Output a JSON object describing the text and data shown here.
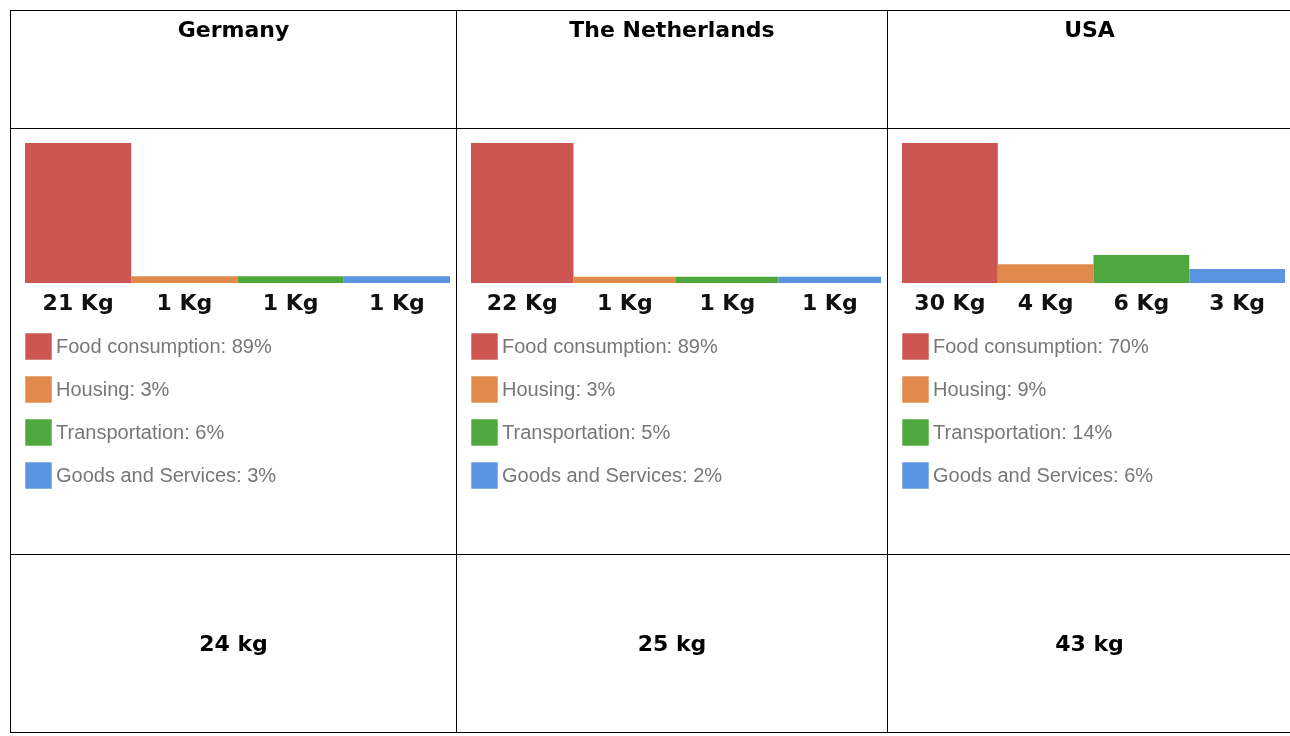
{
  "chart_data": [
    {
      "type": "bar",
      "title": "Germany",
      "categories": [
        null,
        null,
        null,
        null
      ],
      "legend": "bottom",
      "stacked": true,
      "annotations": [
        "24 kg"
      ],
      "series": [
        {
          "name": "Food consumption: 89%",
          "color": "#cd5652",
          "values": [
            21,
            null,
            null,
            null
          ],
          "value_labels": [
            "21 Kg",
            null,
            null,
            null
          ]
        },
        {
          "name": "Housing: 3%",
          "color": "#e0894a",
          "values": [
            null,
            1,
            null,
            null
          ],
          "value_labels": [
            null,
            "1 Kg",
            null,
            null
          ]
        },
        {
          "name": "Transportation: 6%",
          "color": "#4fa83e",
          "values": [
            null,
            null,
            1,
            null
          ],
          "value_labels": [
            null,
            null,
            "1 Kg",
            null
          ]
        },
        {
          "name": "Goods and Services: 3%",
          "color": "#5b94e0",
          "values": [
            null,
            null,
            null,
            1
          ],
          "value_labels": [
            null,
            null,
            null,
            "1 Kg"
          ]
        }
      ]
    },
    {
      "type": "bar",
      "title": "The Netherlands",
      "categories": [
        null,
        null,
        null,
        null
      ],
      "legend": "bottom",
      "stacked": true,
      "annotations": [
        "25 kg"
      ],
      "series": [
        {
          "name": "Food consumption: 89%",
          "color": "#cd5652",
          "values": [
            22,
            null,
            null,
            null
          ],
          "value_labels": [
            "22 Kg",
            null,
            null,
            null
          ]
        },
        {
          "name": "Housing: 3%",
          "color": "#e0894a",
          "values": [
            null,
            1,
            null,
            null
          ],
          "value_labels": [
            null,
            "1 Kg",
            null,
            null
          ]
        },
        {
          "name": "Transportation: 5%",
          "color": "#4fa83e",
          "values": [
            null,
            null,
            1,
            null
          ],
          "value_labels": [
            null,
            null,
            "1 Kg",
            null
          ]
        },
        {
          "name": "Goods and Services: 2%",
          "color": "#5b94e0",
          "values": [
            null,
            null,
            null,
            1
          ],
          "value_labels": [
            null,
            null,
            null,
            "1 Kg"
          ]
        }
      ]
    },
    {
      "type": "bar",
      "title": "USA",
      "categories": [
        null,
        null,
        null,
        null
      ],
      "legend": "bottom",
      "stacked": true,
      "annotations": [
        "43 kg"
      ],
      "series": [
        {
          "name": "Food consumption: 70%",
          "color": "#cd5652",
          "values": [
            30,
            null,
            null,
            null
          ],
          "value_labels": [
            "30 Kg",
            null,
            null,
            null
          ]
        },
        {
          "name": "Housing: 9%",
          "color": "#e0894a",
          "values": [
            null,
            4,
            null,
            null
          ],
          "value_labels": [
            null,
            "4 Kg",
            null,
            null
          ]
        },
        {
          "name": "Transportation: 14%",
          "color": "#4fa83e",
          "values": [
            null,
            null,
            6,
            null
          ],
          "value_labels": [
            null,
            null,
            "6 Kg",
            null
          ]
        },
        {
          "name": "Goods and Services: 6%",
          "color": "#5b94e0",
          "values": [
            null,
            null,
            null,
            3
          ],
          "value_labels": [
            null,
            null,
            null,
            "3 Kg"
          ]
        }
      ]
    }
  ]
}
